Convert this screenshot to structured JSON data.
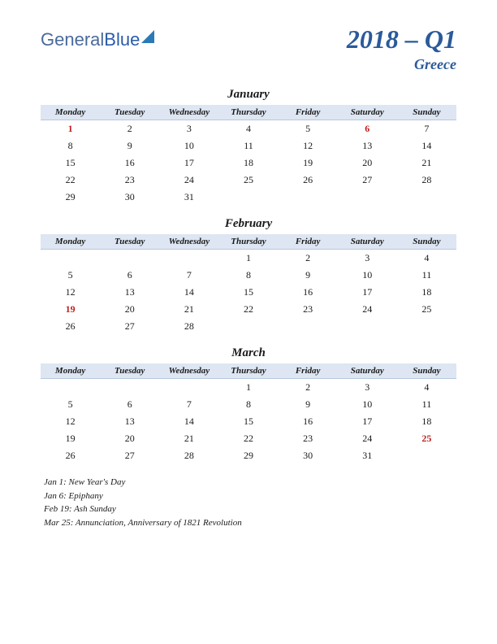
{
  "logo": {
    "part1": "General",
    "part2": "Blue"
  },
  "title": {
    "quarter": "2018 – Q1",
    "country": "Greece"
  },
  "day_headers": [
    "Monday",
    "Tuesday",
    "Wednesday",
    "Thursday",
    "Friday",
    "Saturday",
    "Sunday"
  ],
  "colors": {
    "header_bg": "#dde6f2",
    "title_color": "#2a5a9a",
    "holiday_color": "#c02020",
    "text_color": "#1a1a1a"
  },
  "months": [
    {
      "name": "January",
      "weeks": [
        [
          {
            "d": "1",
            "h": true
          },
          {
            "d": "2"
          },
          {
            "d": "3"
          },
          {
            "d": "4"
          },
          {
            "d": "5"
          },
          {
            "d": "6",
            "h": true
          },
          {
            "d": "7"
          }
        ],
        [
          {
            "d": "8"
          },
          {
            "d": "9"
          },
          {
            "d": "10"
          },
          {
            "d": "11"
          },
          {
            "d": "12"
          },
          {
            "d": "13"
          },
          {
            "d": "14"
          }
        ],
        [
          {
            "d": "15"
          },
          {
            "d": "16"
          },
          {
            "d": "17"
          },
          {
            "d": "18"
          },
          {
            "d": "19"
          },
          {
            "d": "20"
          },
          {
            "d": "21"
          }
        ],
        [
          {
            "d": "22"
          },
          {
            "d": "23"
          },
          {
            "d": "24"
          },
          {
            "d": "25"
          },
          {
            "d": "26"
          },
          {
            "d": "27"
          },
          {
            "d": "28"
          }
        ],
        [
          {
            "d": "29"
          },
          {
            "d": "30"
          },
          {
            "d": "31"
          },
          {
            "d": ""
          },
          {
            "d": ""
          },
          {
            "d": ""
          },
          {
            "d": ""
          }
        ]
      ]
    },
    {
      "name": "February",
      "weeks": [
        [
          {
            "d": ""
          },
          {
            "d": ""
          },
          {
            "d": ""
          },
          {
            "d": "1"
          },
          {
            "d": "2"
          },
          {
            "d": "3"
          },
          {
            "d": "4"
          }
        ],
        [
          {
            "d": "5"
          },
          {
            "d": "6"
          },
          {
            "d": "7"
          },
          {
            "d": "8"
          },
          {
            "d": "9"
          },
          {
            "d": "10"
          },
          {
            "d": "11"
          }
        ],
        [
          {
            "d": "12"
          },
          {
            "d": "13"
          },
          {
            "d": "14"
          },
          {
            "d": "15"
          },
          {
            "d": "16"
          },
          {
            "d": "17"
          },
          {
            "d": "18"
          }
        ],
        [
          {
            "d": "19",
            "h": true
          },
          {
            "d": "20"
          },
          {
            "d": "21"
          },
          {
            "d": "22"
          },
          {
            "d": "23"
          },
          {
            "d": "24"
          },
          {
            "d": "25"
          }
        ],
        [
          {
            "d": "26"
          },
          {
            "d": "27"
          },
          {
            "d": "28"
          },
          {
            "d": ""
          },
          {
            "d": ""
          },
          {
            "d": ""
          },
          {
            "d": ""
          }
        ]
      ]
    },
    {
      "name": "March",
      "weeks": [
        [
          {
            "d": ""
          },
          {
            "d": ""
          },
          {
            "d": ""
          },
          {
            "d": "1"
          },
          {
            "d": "2"
          },
          {
            "d": "3"
          },
          {
            "d": "4"
          }
        ],
        [
          {
            "d": "5"
          },
          {
            "d": "6"
          },
          {
            "d": "7"
          },
          {
            "d": "8"
          },
          {
            "d": "9"
          },
          {
            "d": "10"
          },
          {
            "d": "11"
          }
        ],
        [
          {
            "d": "12"
          },
          {
            "d": "13"
          },
          {
            "d": "14"
          },
          {
            "d": "15"
          },
          {
            "d": "16"
          },
          {
            "d": "17"
          },
          {
            "d": "18"
          }
        ],
        [
          {
            "d": "19"
          },
          {
            "d": "20"
          },
          {
            "d": "21"
          },
          {
            "d": "22"
          },
          {
            "d": "23"
          },
          {
            "d": "24"
          },
          {
            "d": "25",
            "h": true
          }
        ],
        [
          {
            "d": "26"
          },
          {
            "d": "27"
          },
          {
            "d": "28"
          },
          {
            "d": "29"
          },
          {
            "d": "30"
          },
          {
            "d": "31"
          },
          {
            "d": ""
          }
        ]
      ]
    }
  ],
  "holidays": [
    "Jan 1: New Year's Day",
    "Jan 6: Epiphany",
    "Feb 19: Ash Sunday",
    "Mar 25: Annunciation, Anniversary of 1821 Revolution"
  ]
}
